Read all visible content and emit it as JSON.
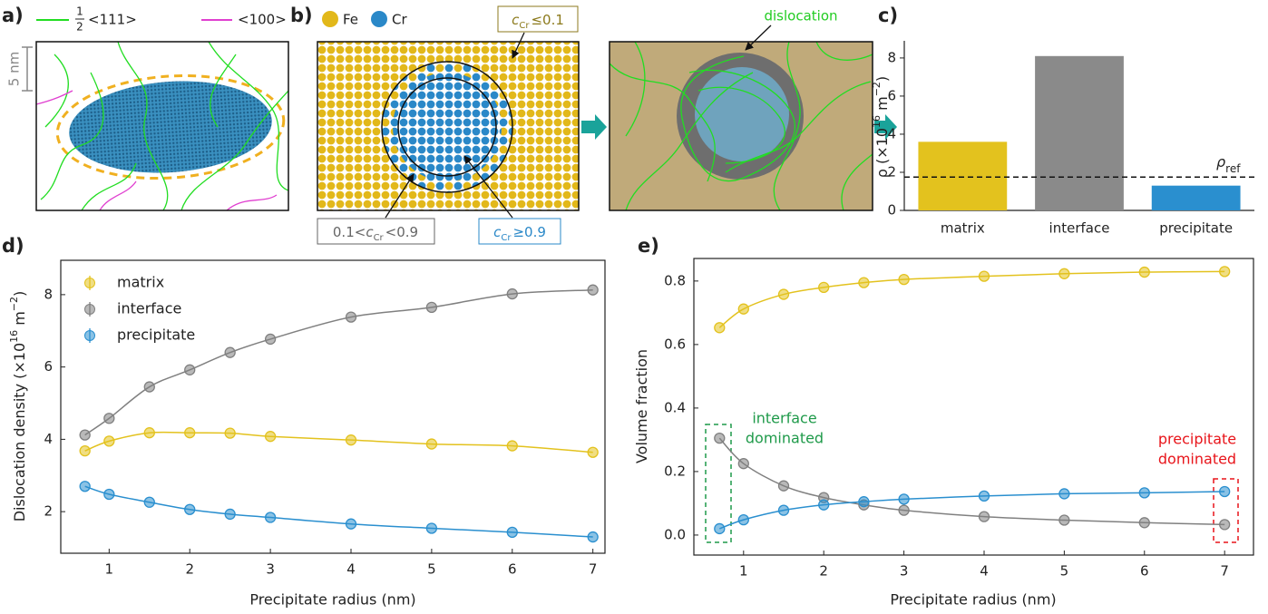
{
  "panel_labels": [
    "a)",
    "b)",
    "c)",
    "d)",
    "e)"
  ],
  "illustration": {
    "a": {
      "legend": [
        {
          "numerator": "1",
          "denominator": "2",
          "name": "<111>",
          "color": "#22dd22"
        },
        {
          "name": "<100>",
          "color": "#e040d0"
        }
      ],
      "scale_bar": "5 nm"
    },
    "b": {
      "species": [
        {
          "name": "Fe",
          "color": "#e2b81a"
        },
        {
          "name": "Cr",
          "color": "#2a88c8"
        }
      ],
      "regions": [
        {
          "symbol": "c",
          "sub": "Cr",
          "post": "≤0.1",
          "color": "#8c7a1c"
        },
        {
          "pre": "0.1<",
          "symbol": "c",
          "sub": "Cr",
          "post": "<0.9",
          "color": "#666666"
        },
        {
          "symbol": "c",
          "sub": "Cr",
          "post": "≥0.9",
          "color": "#2a88c8"
        }
      ],
      "dislocation_label": "dislocation"
    }
  },
  "chart_data": [
    {
      "type": "bar",
      "ylabel": [
        "ρ (×10",
        "16",
        " m",
        "−2",
        ")"
      ],
      "categories": [
        "matrix",
        "interface",
        "precipitate"
      ],
      "values": [
        3.6,
        8.1,
        1.3
      ],
      "colors": [
        "#e3c21e",
        "#8a8a8a",
        "#2a8fcf"
      ],
      "ylim": [
        0,
        8.9
      ],
      "yticks": [
        0,
        2,
        4,
        6,
        8
      ],
      "reference_line": {
        "value": 1.75,
        "label": [
          "ρ",
          "ref"
        ]
      }
    },
    {
      "type": "line",
      "xlabel": "Precipitate radius (nm)",
      "ylabel": [
        "Dislocation density (×10",
        "16",
        " m",
        "−2",
        ")"
      ],
      "x": [
        0.7,
        1,
        1.5,
        2,
        2.5,
        3,
        4,
        5,
        6,
        7
      ],
      "series": [
        {
          "name": "matrix",
          "color": "#e3c21e",
          "values": [
            3.68,
            3.95,
            4.18,
            4.18,
            4.17,
            4.08,
            3.98,
            3.87,
            3.82,
            3.64
          ]
        },
        {
          "name": "interface",
          "color": "#808080",
          "values": [
            4.12,
            4.58,
            5.45,
            5.92,
            6.4,
            6.77,
            7.38,
            7.65,
            8.02,
            8.13
          ]
        },
        {
          "name": "precipitate",
          "color": "#2a8fcf",
          "values": [
            2.7,
            2.48,
            2.26,
            2.06,
            1.93,
            1.84,
            1.66,
            1.54,
            1.43,
            1.3
          ]
        }
      ],
      "xlim": [
        0.4,
        7.15
      ],
      "ylim": [
        0.85,
        8.95
      ],
      "xticks": [
        1,
        2,
        3,
        4,
        5,
        6,
        7
      ],
      "yticks": [
        2,
        4,
        6,
        8
      ],
      "legend": "upper left"
    },
    {
      "type": "line",
      "xlabel": "Precipitate radius (nm)",
      "ylabel": [
        "Volume fraction"
      ],
      "x": [
        0.7,
        1,
        1.5,
        2,
        2.5,
        3,
        4,
        5,
        6,
        7
      ],
      "series": [
        {
          "name": "matrix",
          "color": "#e3c21e",
          "values": [
            0.653,
            0.712,
            0.758,
            0.78,
            0.795,
            0.805,
            0.815,
            0.823,
            0.828,
            0.83
          ]
        },
        {
          "name": "interface",
          "color": "#808080",
          "values": [
            0.305,
            0.225,
            0.155,
            0.118,
            0.095,
            0.078,
            0.058,
            0.047,
            0.039,
            0.033
          ]
        },
        {
          "name": "precipitate",
          "color": "#2a8fcf",
          "values": [
            0.02,
            0.048,
            0.078,
            0.095,
            0.105,
            0.113,
            0.123,
            0.13,
            0.133,
            0.137
          ]
        }
      ],
      "xlim": [
        0.38,
        7.36
      ],
      "ylim": [
        -0.063,
        0.871
      ],
      "xticks": [
        1,
        2,
        3,
        4,
        5,
        6,
        7
      ],
      "yticks": [
        {
          "value": 0,
          "label": "0.0"
        },
        0.2,
        0.4,
        0.6,
        0.8
      ],
      "annotations": [
        {
          "text": [
            "interface",
            "dominated"
          ],
          "color": "#1f9a4a"
        },
        {
          "text": [
            "precipitate",
            "dominated"
          ],
          "color": "#e8141a"
        }
      ]
    }
  ]
}
